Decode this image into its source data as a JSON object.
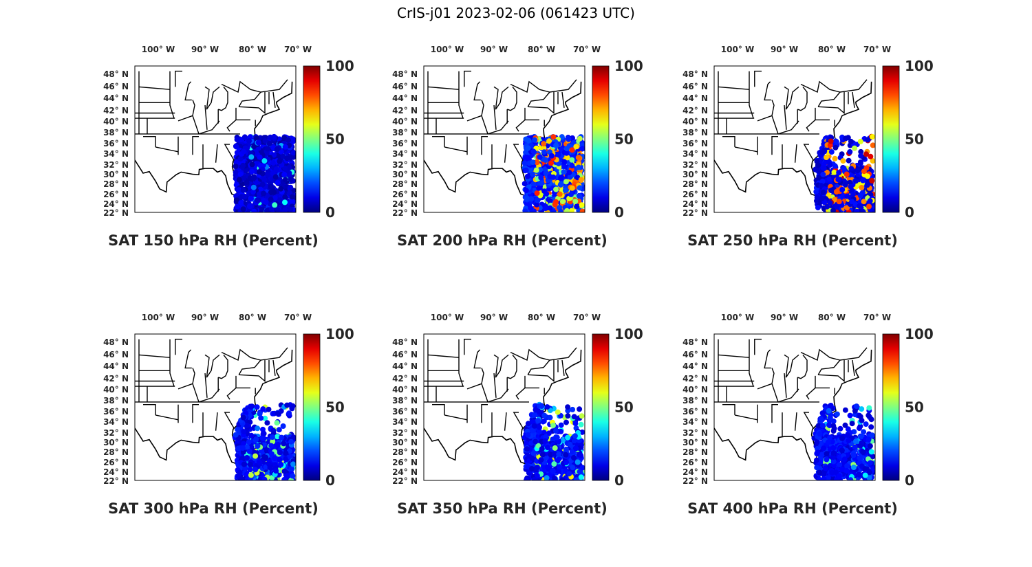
{
  "figure": {
    "suptitle": "CrIS-j01 2023-02-06 (061423 UTC)"
  },
  "chart_data": {
    "type": "scatter",
    "lon_ticks": [
      "100° W",
      "90° W",
      "80° W",
      "70° W"
    ],
    "lat_ticks": [
      "48° N",
      "46° N",
      "44° N",
      "42° N",
      "40° N",
      "38° N",
      "36° N",
      "34° N",
      "32° N",
      "30° N",
      "28° N",
      "26° N",
      "24° N",
      "22° N"
    ],
    "colorbar": {
      "ticks": [
        "100",
        "50",
        "0"
      ],
      "range": [
        0,
        100
      ],
      "colormap": "jet"
    },
    "panels": [
      {
        "title": "SAT 150 hPa RH (Percent)",
        "level_hPa": 150,
        "rh_percent_typical": 8,
        "moist_fraction": 0.08,
        "rh_percent_moist": 25
      },
      {
        "title": "SAT 200 hPa RH (Percent)",
        "level_hPa": 200,
        "rh_percent_typical": 15,
        "moist_fraction": 0.35,
        "rh_percent_moist": 65
      },
      {
        "title": "SAT 250 hPa RH (Percent)",
        "level_hPa": 250,
        "rh_percent_typical": 10,
        "moist_fraction": 0.3,
        "rh_percent_moist": 75
      },
      {
        "title": "SAT 300 hPa RH (Percent)",
        "level_hPa": 300,
        "rh_percent_typical": 12,
        "moist_fraction": 0.2,
        "rh_percent_moist": 40
      },
      {
        "title": "SAT 350 hPa RH (Percent)",
        "level_hPa": 350,
        "rh_percent_typical": 12,
        "moist_fraction": 0.2,
        "rh_percent_moist": 45
      },
      {
        "title": "SAT 400 hPa RH (Percent)",
        "level_hPa": 400,
        "rh_percent_typical": 12,
        "moist_fraction": 0.15,
        "rh_percent_moist": 35
      }
    ]
  },
  "colors": {
    "land_fill": "#ffffff",
    "boundary": "#000000",
    "text": "#262626"
  }
}
